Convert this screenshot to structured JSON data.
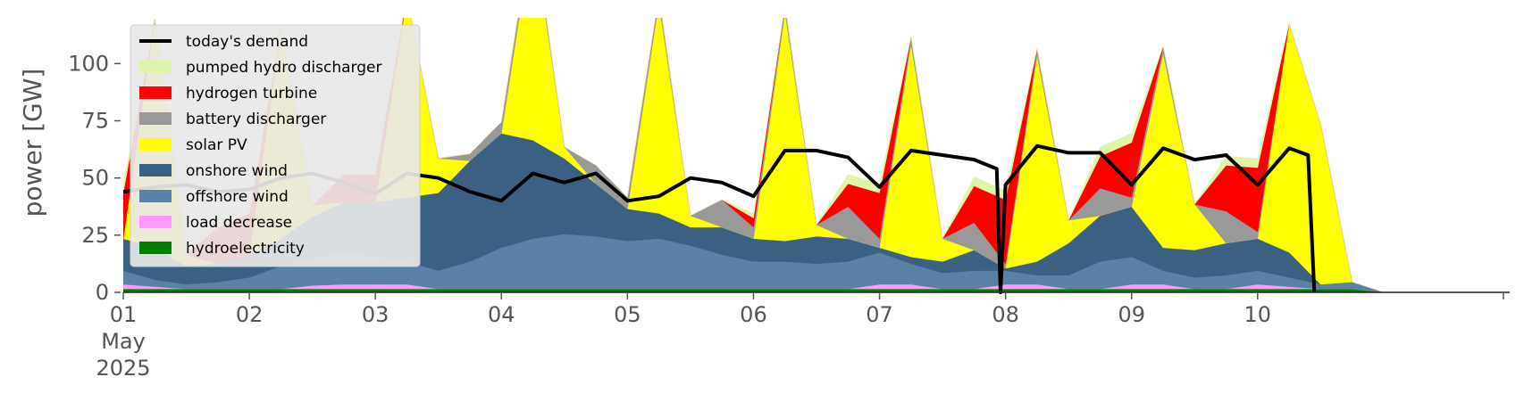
{
  "chart_data": {
    "type": "area",
    "ylabel": "power [GW]",
    "ylim": [
      0,
      120
    ],
    "yticks": [
      "0",
      "25",
      "50",
      "75",
      "100"
    ],
    "ytick_values": [
      0,
      25,
      50,
      75,
      100
    ],
    "xlim": [
      "2025-05-01",
      "2025-05-11"
    ],
    "xticks": [
      "01",
      "02",
      "03",
      "04",
      "05",
      "06",
      "07",
      "08",
      "09",
      "10"
    ],
    "xtick_days": [
      0,
      1,
      2,
      3,
      4,
      5,
      6,
      7,
      8,
      9
    ],
    "x_sublabels": [
      "May",
      "2025"
    ],
    "grid": false,
    "legend_position": "upper left",
    "legend": [
      {
        "label": "today's demand",
        "kind": "line",
        "color": "#000000"
      },
      {
        "label": "pumped hydro discharger",
        "kind": "area",
        "color": "#dff5a8"
      },
      {
        "label": "hydrogen turbine",
        "kind": "area",
        "color": "#ff0000"
      },
      {
        "label": "battery discharger",
        "kind": "area",
        "color": "#999999"
      },
      {
        "label": "solar PV",
        "kind": "area",
        "color": "#ffff00"
      },
      {
        "label": "onshore wind",
        "kind": "area",
        "color": "#3b6182"
      },
      {
        "label": "offshore wind",
        "kind": "area",
        "color": "#5a82a6"
      },
      {
        "label": "load decrease",
        "kind": "area",
        "color": "#ff99ff"
      },
      {
        "label": "hydroelectricity",
        "kind": "area",
        "color": "#008000"
      }
    ],
    "x_days": [
      0.0,
      0.25,
      0.5,
      0.75,
      1.0,
      1.25,
      1.5,
      1.75,
      2.0,
      2.25,
      2.5,
      2.75,
      3.0,
      3.25,
      3.5,
      3.75,
      4.0,
      4.25,
      4.5,
      4.75,
      5.0,
      5.25,
      5.5,
      5.75,
      6.0,
      6.25,
      6.5,
      6.75,
      7.0,
      7.25,
      7.5,
      7.75,
      8.0,
      8.25,
      8.5,
      8.75,
      9.0,
      9.25,
      9.5,
      9.75,
      10.0,
      10.5,
      11.0
    ],
    "series": [
      {
        "name": "hydroelectricity",
        "color": "#008000",
        "values": [
          1.5,
          1.5,
          1.5,
          1.5,
          1.5,
          1.5,
          1.5,
          1.5,
          1.5,
          1.5,
          1.5,
          1.5,
          1.5,
          1.5,
          1.5,
          1.5,
          1.5,
          1.5,
          1.5,
          1.5,
          1.5,
          1.5,
          1.5,
          1.5,
          1.5,
          1.5,
          1.5,
          1.5,
          1.5,
          1.5,
          1.5,
          1.5,
          1.5,
          1.5,
          1.5,
          1.5,
          1.5,
          1.5,
          1.5,
          1.5,
          0,
          0,
          0
        ]
      },
      {
        "name": "load decrease",
        "color": "#ff99ff",
        "values": [
          2,
          1,
          0,
          0,
          0,
          0,
          1.5,
          2,
          2,
          2,
          0,
          0,
          0,
          0,
          0,
          0,
          0,
          0,
          0,
          0,
          0,
          0,
          0,
          0,
          2,
          2,
          0,
          0,
          2,
          2,
          0,
          0,
          2,
          2,
          0,
          0,
          2,
          1,
          0,
          0,
          0,
          0,
          0
        ]
      },
      {
        "name": "offshore wind",
        "color": "#5a82a6",
        "values": [
          6,
          3,
          2,
          3,
          5,
          10,
          12,
          14,
          12,
          10,
          8,
          12,
          18,
          22,
          24,
          23,
          21,
          22,
          19,
          15,
          12,
          12,
          11,
          12,
          14,
          9,
          7,
          8,
          6,
          4,
          6,
          12,
          12,
          6,
          5,
          6,
          6,
          4,
          2,
          3,
          0,
          0,
          0
        ]
      },
      {
        "name": "onshore wind",
        "color": "#3b6182",
        "values": [
          14,
          14,
          8,
          8,
          10,
          12,
          18,
          22,
          24,
          28,
          34,
          44,
          50,
          43,
          33,
          23,
          14,
          11,
          8,
          12,
          10,
          9,
          12,
          10,
          2,
          3,
          5,
          9,
          1,
          6,
          14,
          20,
          22,
          10,
          12,
          14,
          14,
          11,
          0,
          0,
          0,
          0,
          0
        ]
      },
      {
        "name": "solar PV",
        "color": "#ffff00",
        "values": [
          0,
          100,
          5,
          0,
          0,
          92,
          5,
          0,
          0,
          88,
          15,
          0,
          0,
          92,
          5,
          0,
          0,
          92,
          5,
          0,
          0,
          100,
          5,
          0,
          0,
          93,
          10,
          0,
          0,
          90,
          10,
          0,
          0,
          85,
          20,
          0,
          0,
          100,
          70,
          0,
          0,
          0,
          0
        ]
      },
      {
        "name": "battery discharger",
        "color": "#999999",
        "values": [
          0,
          0,
          0,
          0,
          0,
          0,
          0,
          0,
          0,
          0,
          0,
          3,
          5,
          3,
          0,
          8,
          5,
          3,
          0,
          12,
          5,
          3,
          0,
          14,
          4,
          3,
          0,
          12,
          2,
          3,
          0,
          12,
          4,
          3,
          0,
          14,
          3,
          0,
          0,
          0,
          0,
          0,
          0
        ]
      },
      {
        "name": "hydrogen turbine",
        "color": "#ff0000",
        "values": [
          20,
          0,
          0,
          16,
          18,
          0,
          0,
          12,
          12,
          0,
          0,
          0,
          0,
          0,
          0,
          0,
          0,
          0,
          0,
          0,
          4,
          0,
          0,
          10,
          20,
          0,
          0,
          16,
          28,
          0,
          0,
          14,
          24,
          0,
          0,
          20,
          28,
          0,
          0,
          0,
          0,
          0,
          0
        ]
      },
      {
        "name": "pumped hydro discharger",
        "color": "#dff5a8",
        "values": [
          4,
          0,
          0,
          4,
          0,
          0,
          0,
          2,
          0,
          0,
          0,
          0,
          0,
          0,
          0,
          0,
          0,
          0,
          0,
          0,
          2,
          0,
          0,
          4,
          4,
          0,
          0,
          4,
          4,
          0,
          0,
          4,
          4,
          0,
          0,
          4,
          4,
          0,
          0,
          0,
          0,
          0,
          0
        ]
      }
    ],
    "demand": {
      "name": "today's demand",
      "color": "#000000",
      "x_days": [
        0.0,
        0.25,
        0.5,
        0.75,
        1.0,
        1.25,
        1.5,
        1.75,
        2.0,
        2.25,
        2.5,
        2.75,
        3.0,
        3.25,
        3.5,
        3.75,
        4.0,
        4.25,
        4.5,
        4.75,
        5.0,
        5.25,
        5.5,
        5.75,
        6.0,
        6.25,
        6.5,
        6.75,
        6.93,
        6.96,
        7.0,
        7.25,
        7.5,
        7.75,
        8.0,
        8.25,
        8.5,
        8.75,
        9.0,
        9.25,
        9.4,
        9.45
      ],
      "values": [
        44,
        46,
        47,
        44,
        45,
        50,
        52,
        48,
        43,
        52,
        50,
        44,
        40,
        52,
        48,
        52,
        40,
        42,
        50,
        48,
        42,
        62,
        62,
        59,
        46,
        62,
        60,
        58,
        54,
        0,
        47,
        64,
        61,
        61,
        47,
        63,
        58,
        60,
        47,
        63,
        60,
        0
      ]
    }
  }
}
